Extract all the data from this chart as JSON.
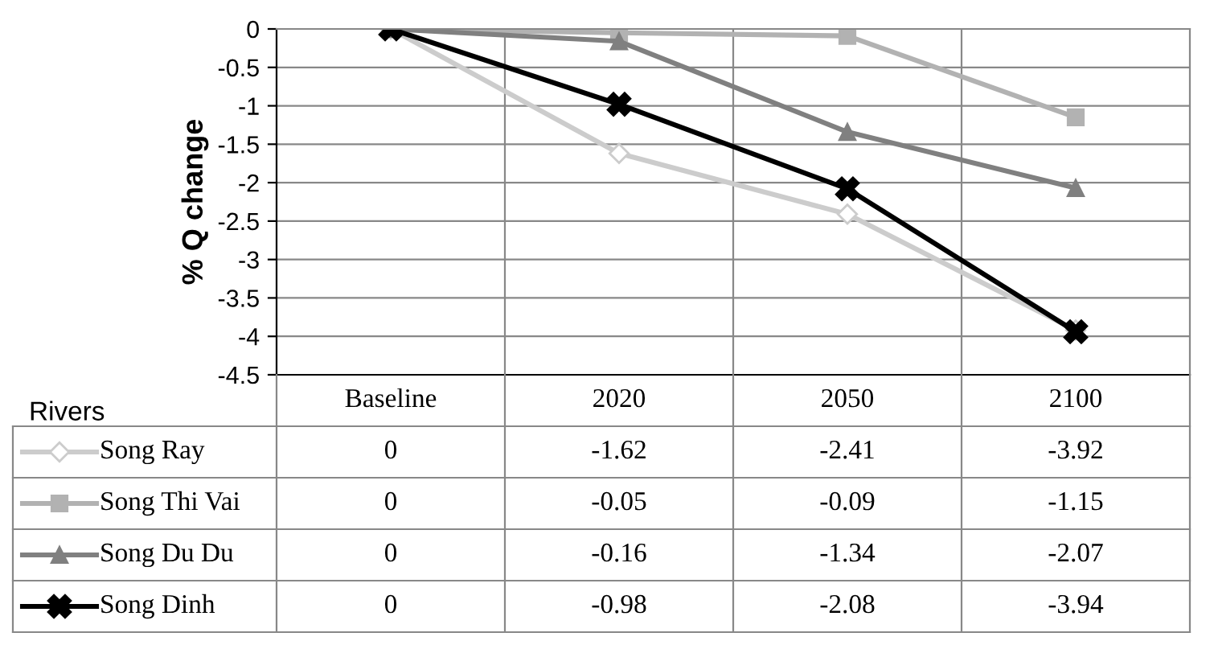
{
  "chart_data": {
    "type": "line",
    "ylabel": "% Q change",
    "legend_title": "Rivers",
    "categories": [
      "Baseline",
      "2020",
      "2050",
      "2100"
    ],
    "ylim": [
      -4.5,
      0
    ],
    "yticks": [
      0,
      -0.5,
      -1,
      -1.5,
      -2,
      -2.5,
      -3,
      -3.5,
      -4,
      -4.5
    ],
    "grid": true,
    "legend": "bottom left",
    "data_labels": true,
    "series": [
      {
        "name": "Song Ray",
        "color": "#cccccc",
        "marker": "diamond",
        "values": [
          0,
          -1.62,
          -2.41,
          -3.92
        ]
      },
      {
        "name": "Song Thi Vai",
        "color": "#b2b2b2",
        "marker": "square",
        "values": [
          0,
          -0.05,
          -0.09,
          -1.15
        ]
      },
      {
        "name": "Song Du Du",
        "color": "#808080",
        "marker": "triangle",
        "values": [
          0,
          -0.16,
          -1.34,
          -2.07
        ]
      },
      {
        "name": "Song Dinh",
        "color": "#000000",
        "marker": "cross",
        "values": [
          0,
          -0.98,
          -2.08,
          -3.94
        ]
      }
    ]
  }
}
